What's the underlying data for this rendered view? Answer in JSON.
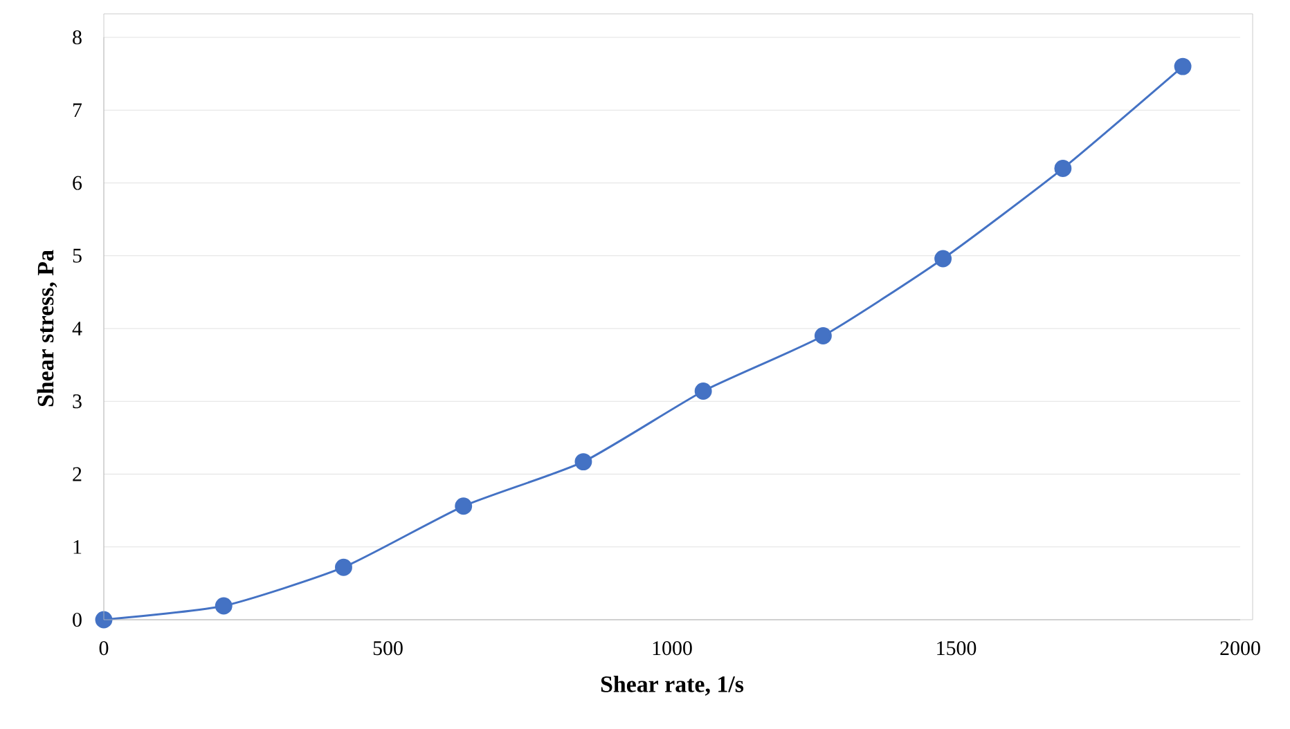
{
  "chart_data": {
    "type": "line",
    "xlabel": "Shear rate, 1/s",
    "ylabel": "Shear stress, Pa",
    "x": [
      0,
      211,
      422,
      633,
      844,
      1055,
      1266,
      1477,
      1688,
      1899
    ],
    "series": [
      {
        "color": "#4472c4",
        "values": [
          0,
          0.19,
          0.72,
          1.56,
          2.17,
          3.14,
          3.9,
          4.96,
          6.2,
          7.6
        ]
      }
    ],
    "xlim": [
      0,
      2000
    ],
    "ylim": [
      0,
      8
    ],
    "xticks": [
      0,
      500,
      1000,
      1500,
      2000
    ],
    "yticks": [
      0,
      1,
      2,
      3,
      4,
      5,
      6,
      7,
      8
    ],
    "grid": "y",
    "marker": "circle",
    "line_style": "solid"
  }
}
